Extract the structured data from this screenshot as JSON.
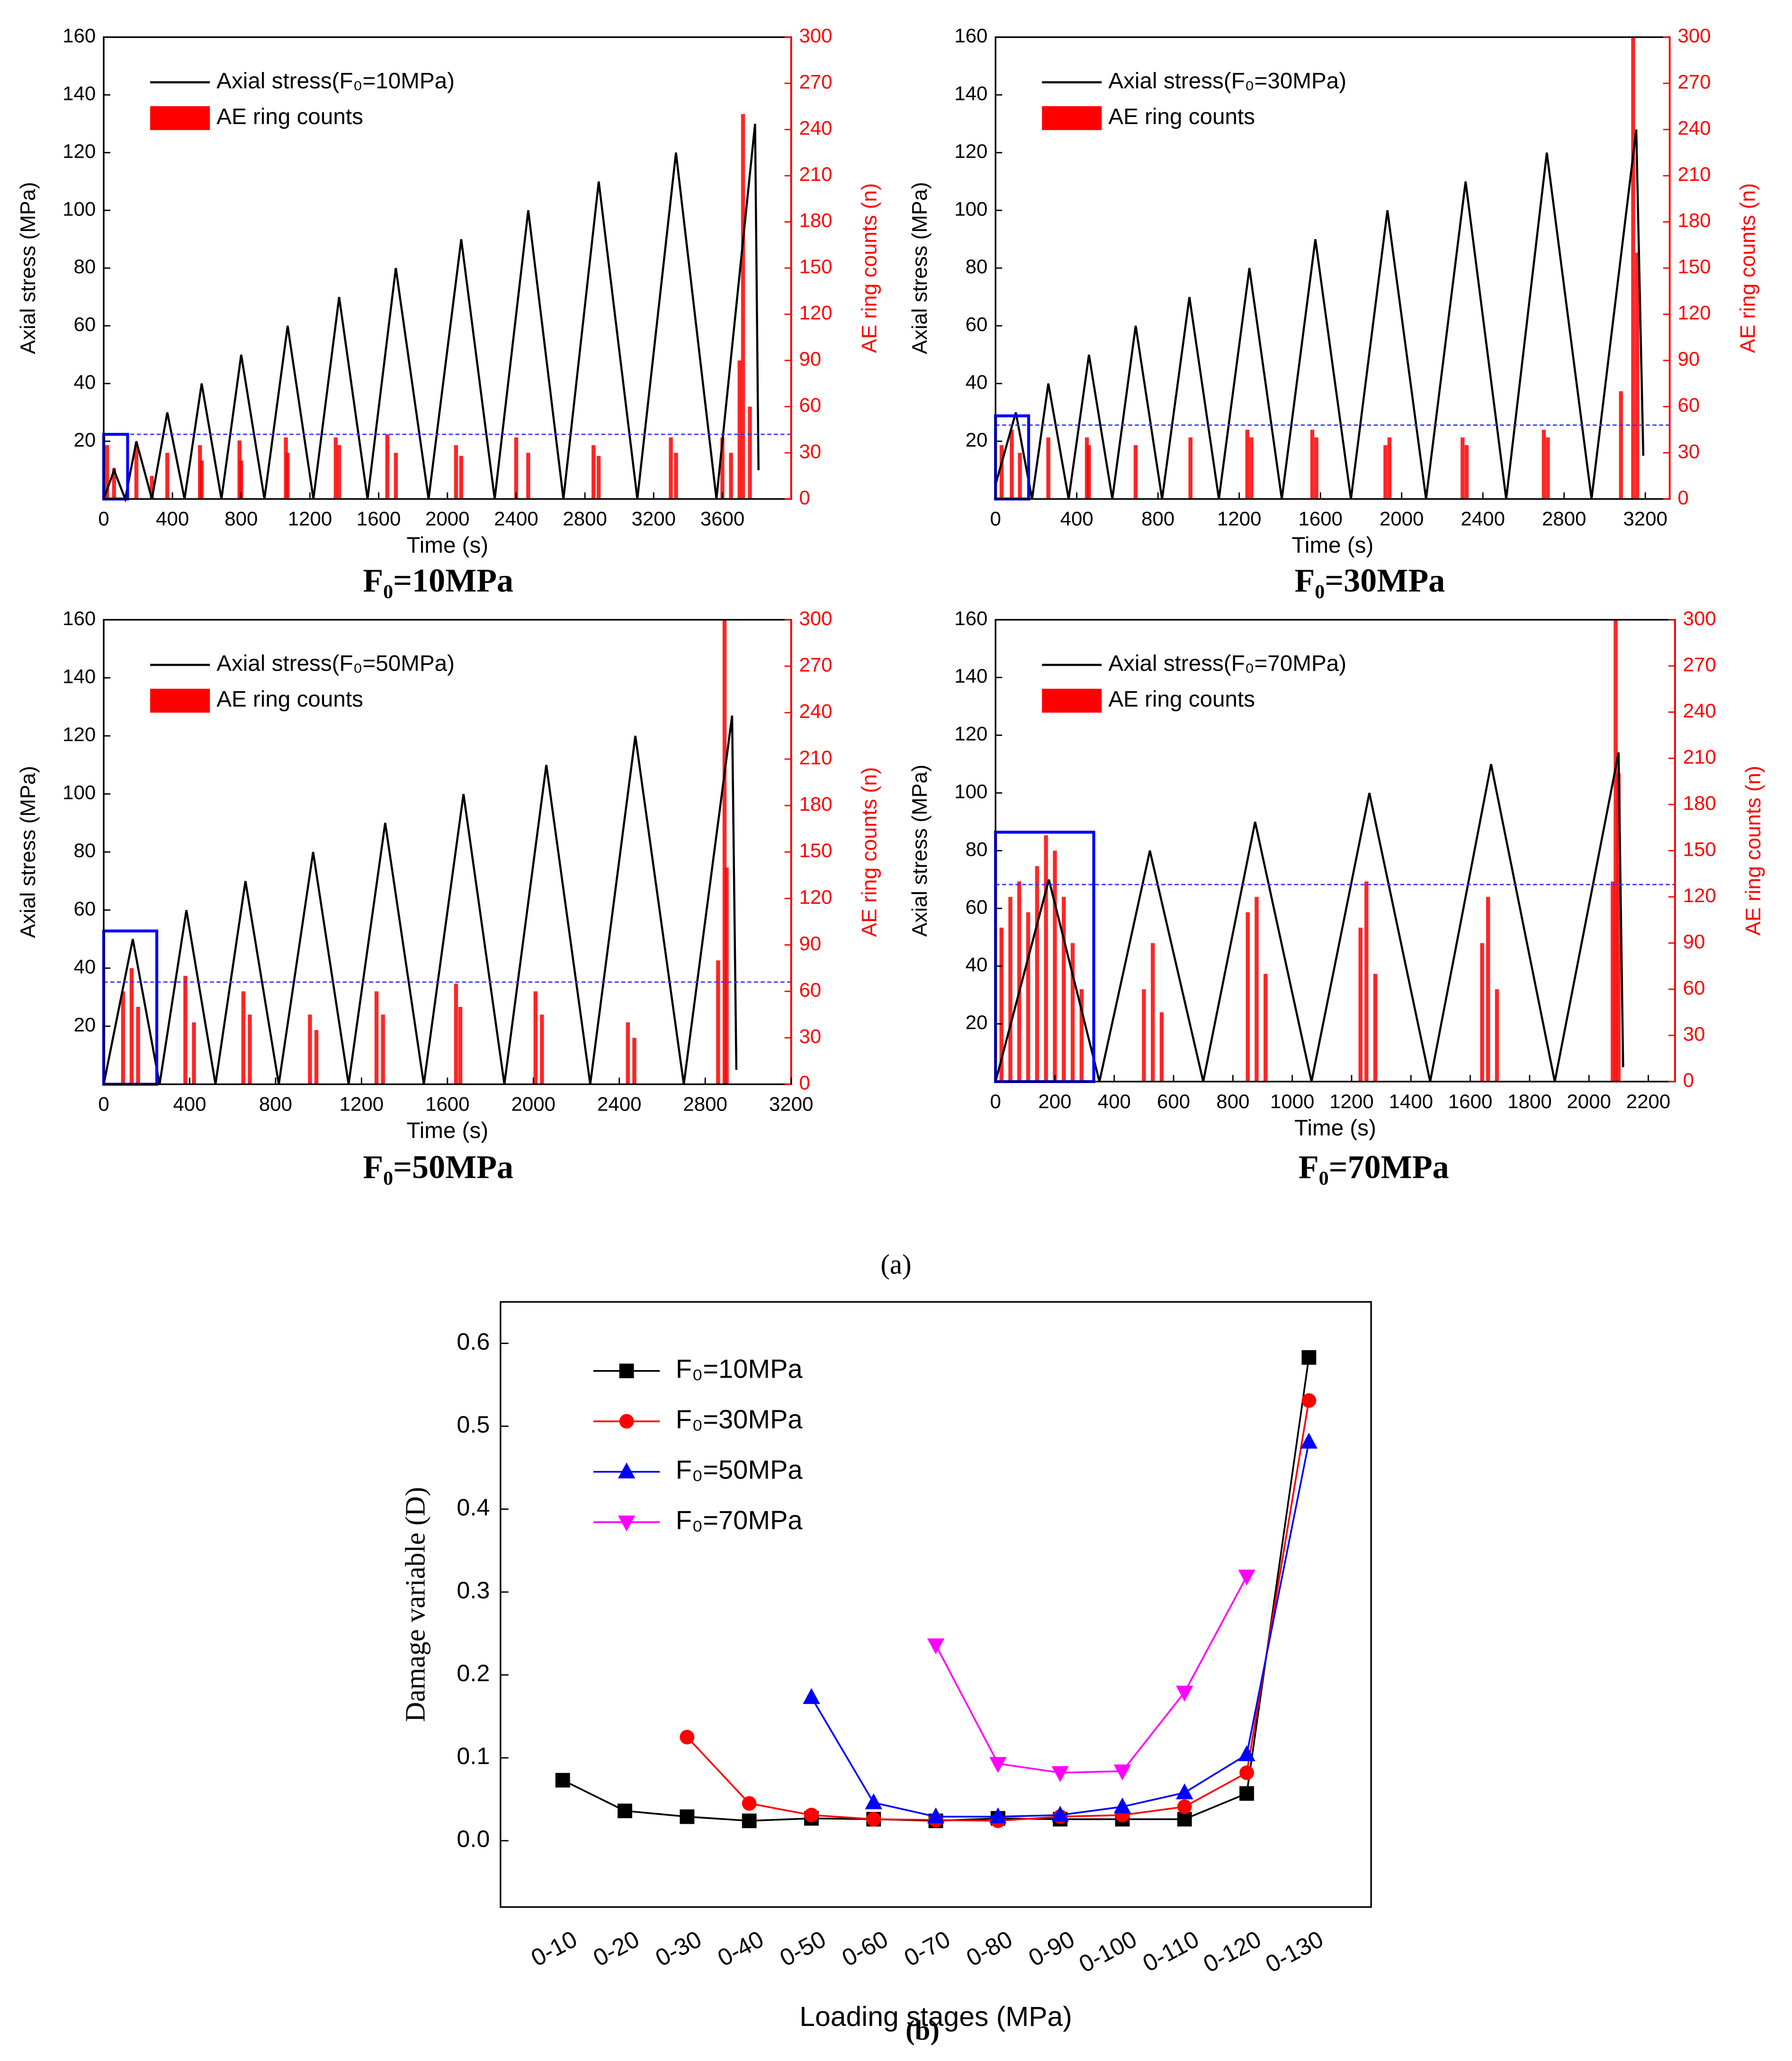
{
  "panel_labels": [
    "(a)",
    "(b)"
  ],
  "chart_data": [
    {
      "type": "combo",
      "title": "F₀=10MPa",
      "x_label": "Time (s)",
      "y_label": "Axial stress (MPa)",
      "y2_label": "AE ring counts (n)",
      "xlim": [
        0,
        4000
      ],
      "xticks": [
        0,
        400,
        800,
        1200,
        1600,
        2000,
        2400,
        2800,
        3200,
        3600
      ],
      "ylim": [
        0,
        160
      ],
      "yticks": [
        20,
        40,
        60,
        80,
        100,
        120,
        140,
        160
      ],
      "y2lim": [
        0,
        300
      ],
      "y2ticks": [
        0,
        30,
        60,
        90,
        120,
        150,
        180,
        210,
        240,
        270,
        300
      ],
      "threshold": 42,
      "box": {
        "x_end": 139,
        "y2_top": 42
      },
      "series": [
        {
          "name": "Axial stress(F₀=10MPa)",
          "color": "#000000",
          "type": "line",
          "x": [
            0,
            60,
            125,
            190,
            280,
            370,
            470,
            570,
            685,
            800,
            935,
            1070,
            1220,
            1370,
            1535,
            1700,
            1890,
            2080,
            2275,
            2470,
            2675,
            2880,
            3105,
            3330,
            3565,
            3790,
            3810
          ],
          "values": [
            0,
            10,
            0,
            20,
            0,
            30,
            0,
            40,
            0,
            50,
            0,
            60,
            0,
            70,
            0,
            80,
            0,
            90,
            0,
            100,
            0,
            110,
            0,
            120,
            0,
            130,
            10
          ]
        },
        {
          "name": "AE ring counts",
          "color": "#ff0000",
          "type": "bar",
          "axis": "y2",
          "x": [
            20,
            60,
            190,
            280,
            370,
            560,
            570,
            790,
            800,
            1060,
            1070,
            1350,
            1370,
            1650,
            1700,
            2050,
            2080,
            2400,
            2470,
            2850,
            2880,
            3300,
            3330,
            3600,
            3650,
            3700,
            3720,
            3760
          ],
          "values": [
            35,
            20,
            35,
            15,
            30,
            35,
            25,
            38,
            25,
            40,
            30,
            40,
            35,
            42,
            30,
            35,
            28,
            40,
            30,
            35,
            28,
            40,
            30,
            40,
            30,
            90,
            250,
            60
          ]
        }
      ]
    },
    {
      "type": "combo",
      "title": "F₀=30MPa",
      "x_label": "Time (s)",
      "y_label": "Axial stress (MPa)",
      "y2_label": "AE ring counts (n)",
      "xlim": [
        0,
        3320
      ],
      "xticks": [
        0,
        400,
        800,
        1200,
        1600,
        2000,
        2400,
        2800,
        3200
      ],
      "ylim": [
        0,
        160
      ],
      "yticks": [
        20,
        40,
        60,
        80,
        100,
        120,
        140,
        160
      ],
      "y2lim": [
        0,
        300
      ],
      "y2ticks": [
        0,
        30,
        60,
        90,
        120,
        150,
        180,
        210,
        240,
        270,
        300
      ],
      "threshold": 48,
      "box": {
        "x_end": 163,
        "y2_top": 54
      },
      "series": [
        {
          "name": "Axial stress(F₀=30MPa)",
          "color": "#000000",
          "type": "line",
          "x": [
            0,
            100,
            180,
            260,
            360,
            460,
            575,
            690,
            820,
            955,
            1100,
            1250,
            1410,
            1575,
            1750,
            1930,
            2120,
            2315,
            2515,
            2715,
            2935,
            3155,
            3190
          ],
          "values": [
            5,
            30,
            0,
            40,
            0,
            50,
            0,
            60,
            0,
            70,
            0,
            80,
            0,
            90,
            0,
            100,
            0,
            110,
            0,
            120,
            0,
            128,
            15
          ]
        },
        {
          "name": "AE ring counts",
          "color": "#ff0000",
          "type": "bar",
          "axis": "y2",
          "x": [
            30,
            80,
            120,
            260,
            450,
            460,
            690,
            960,
            1240,
            1260,
            1560,
            1580,
            1920,
            1940,
            2300,
            2320,
            2700,
            2720,
            3080,
            3140,
            3160
          ],
          "values": [
            35,
            45,
            30,
            40,
            40,
            35,
            35,
            40,
            45,
            40,
            45,
            40,
            35,
            40,
            40,
            35,
            45,
            40,
            70,
            300,
            160
          ]
        }
      ]
    },
    {
      "type": "combo",
      "title": "F₀=50MPa",
      "x_label": "Time (s)",
      "y_label": "Axial stress (MPa)",
      "y2_label": "AE ring counts (n)",
      "xlim": [
        0,
        3200
      ],
      "xticks": [
        0,
        400,
        800,
        1200,
        1600,
        2000,
        2400,
        2800,
        3200
      ],
      "ylim": [
        0,
        160
      ],
      "yticks": [
        20,
        40,
        60,
        80,
        100,
        120,
        140,
        160
      ],
      "y2lim": [
        0,
        300
      ],
      "y2ticks": [
        0,
        30,
        60,
        90,
        120,
        150,
        180,
        210,
        240,
        270,
        300
      ],
      "threshold": 66,
      "box": {
        "x_end": 247,
        "y2_top": 99
      },
      "series": [
        {
          "name": "Axial stress(F₀=50MPa)",
          "color": "#000000",
          "type": "line",
          "x": [
            0,
            135,
            260,
            385,
            520,
            660,
            815,
            975,
            1140,
            1310,
            1490,
            1675,
            1865,
            2060,
            2265,
            2475,
            2700,
            2925,
            2945
          ],
          "values": [
            0,
            50,
            0,
            60,
            0,
            70,
            0,
            80,
            0,
            90,
            0,
            100,
            0,
            110,
            0,
            120,
            0,
            127,
            5
          ]
        },
        {
          "name": "AE ring counts",
          "color": "#ff0000",
          "type": "bar",
          "axis": "y2",
          "x": [
            90,
            130,
            160,
            380,
            420,
            650,
            680,
            960,
            990,
            1270,
            1300,
            1640,
            1660,
            2010,
            2040,
            2440,
            2470,
            2860,
            2890,
            2900
          ],
          "values": [
            60,
            75,
            50,
            70,
            40,
            60,
            45,
            45,
            35,
            60,
            45,
            65,
            50,
            60,
            45,
            40,
            30,
            80,
            300,
            140
          ]
        }
      ]
    },
    {
      "type": "combo",
      "title": "F₀=70MPa",
      "x_label": "Time (s)",
      "y_label": "Axial stress (MPa)",
      "y2_label": "AE ring counts (n)",
      "xlim": [
        0,
        2290
      ],
      "xticks": [
        0,
        200,
        400,
        600,
        800,
        1000,
        1200,
        1400,
        1600,
        1800,
        2000,
        2200
      ],
      "ylim": [
        0,
        160
      ],
      "yticks": [
        20,
        40,
        60,
        80,
        100,
        120,
        140,
        160
      ],
      "y2lim": [
        0,
        300
      ],
      "y2ticks": [
        0,
        30,
        60,
        90,
        120,
        150,
        180,
        210,
        240,
        270,
        300
      ],
      "threshold": 128,
      "box": {
        "x_end": 331,
        "y2_top": 162
      },
      "series": [
        {
          "name": "Axial stress(F₀=70MPa)",
          "color": "#000000",
          "type": "line",
          "x": [
            0,
            180,
            350,
            520,
            700,
            875,
            1065,
            1260,
            1465,
            1670,
            1885,
            2100,
            2115
          ],
          "values": [
            0,
            70,
            0,
            80,
            0,
            90,
            0,
            100,
            0,
            110,
            0,
            114,
            5
          ]
        },
        {
          "name": "AE ring counts",
          "color": "#ff0000",
          "type": "bar",
          "axis": "y2",
          "x": [
            20,
            50,
            80,
            110,
            140,
            170,
            200,
            230,
            260,
            290,
            500,
            530,
            560,
            850,
            880,
            910,
            1230,
            1250,
            1280,
            1640,
            1660,
            1690,
            2080,
            2090,
            2100
          ],
          "values": [
            100,
            120,
            130,
            110,
            140,
            160,
            150,
            120,
            90,
            60,
            60,
            90,
            45,
            110,
            120,
            70,
            100,
            130,
            70,
            90,
            120,
            60,
            130,
            300,
            200
          ]
        }
      ]
    },
    {
      "type": "line",
      "x_label": "Loading stages (MPa)",
      "y_label": "Damage variable (D)",
      "categories": [
        "0-10",
        "0-20",
        "0-30",
        "0-40",
        "0-50",
        "0-60",
        "0-70",
        "0-80",
        "0-90",
        "0-100",
        "0-110",
        "0-120",
        "0-130"
      ],
      "ylim": [
        -0.08,
        0.65
      ],
      "yticks": [
        {
          "value": 0,
          "label": "0.0"
        },
        0.1,
        0.2,
        0.3,
        0.4,
        0.5,
        0.6
      ],
      "series": [
        {
          "name": "F₀=10MPa",
          "color": "#000000",
          "marker": "square",
          "values": [
            0.073,
            0.036,
            0.029,
            0.024,
            0.027,
            0.026,
            0.024,
            0.027,
            0.026,
            0.026,
            0.026,
            0.057,
            0.583
          ]
        },
        {
          "name": "F₀=30MPa",
          "color": "#ff0000",
          "marker": "circle",
          "values": [
            null,
            null,
            0.125,
            0.045,
            0.031,
            0.026,
            0.025,
            0.024,
            0.029,
            0.031,
            0.041,
            0.082,
            0.531
          ]
        },
        {
          "name": "F₀=50MPa",
          "color": "#0000ff",
          "marker": "triangle-up",
          "values": [
            null,
            null,
            null,
            null,
            0.173,
            0.046,
            0.029,
            0.029,
            0.031,
            0.041,
            0.058,
            0.104,
            0.481
          ]
        },
        {
          "name": "F₀=70MPa",
          "color": "#ff00ff",
          "marker": "triangle-down",
          "values": [
            null,
            null,
            null,
            null,
            null,
            null,
            0.236,
            0.093,
            0.082,
            0.084,
            0.179,
            0.319,
            null
          ]
        }
      ]
    }
  ]
}
